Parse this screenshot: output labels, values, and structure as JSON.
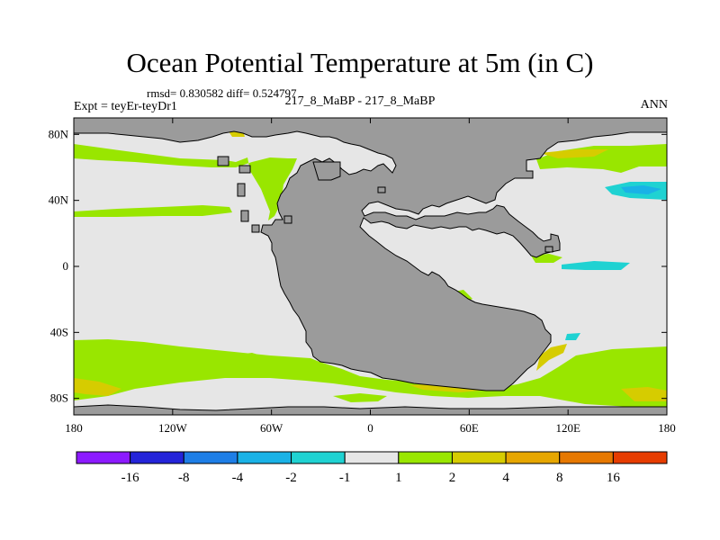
{
  "title": "Ocean Potential Temperature at 5m (in C)",
  "stats": "rmsd= 0.830582 diff= 0.524797",
  "experiment": "Expt = teyEr-teyDr1",
  "cases": "217_8_MaBP - 217_8_MaBP",
  "season": "ANN",
  "colors": {
    "land": "#9b9b9b",
    "ocean_neutral": "#e6e6e6",
    "plus_1_2": "#99e600",
    "plus_2_4": "#d6cc00",
    "plus_4_8": "#e6a600",
    "minus_2_1": "#1fd2d2",
    "minus_4_2": "#1ab2e6"
  },
  "map": {
    "projection": "cylindrical equidistant",
    "lon_range": [
      -180,
      180
    ],
    "lat_range": [
      -90,
      90
    ],
    "lat_ticks": [
      {
        "lat": 80,
        "label": "80N"
      },
      {
        "lat": 40,
        "label": "40N"
      },
      {
        "lat": 0,
        "label": "0"
      },
      {
        "lat": -40,
        "label": "40S"
      },
      {
        "lat": -80,
        "label": "80S"
      }
    ],
    "lon_ticks": [
      {
        "lon": -180,
        "label": "180"
      },
      {
        "lon": -120,
        "label": "120W"
      },
      {
        "lon": -60,
        "label": "60W"
      },
      {
        "lon": 0,
        "label": "0"
      },
      {
        "lon": 60,
        "label": "60E"
      },
      {
        "lon": 120,
        "label": "120E"
      },
      {
        "lon": 180,
        "label": "180"
      }
    ]
  },
  "colorbar": {
    "colors": [
      "#8c1aff",
      "#2424d9",
      "#1e7ee6",
      "#1ab2e6",
      "#1fd2d2",
      "#e6e6e6",
      "#99e600",
      "#d6cc00",
      "#e6a600",
      "#e67800",
      "#e63c00"
    ],
    "labels": [
      "-16",
      "-8",
      "-4",
      "-2",
      "-1",
      "1",
      "2",
      "4",
      "8",
      "16"
    ]
  }
}
